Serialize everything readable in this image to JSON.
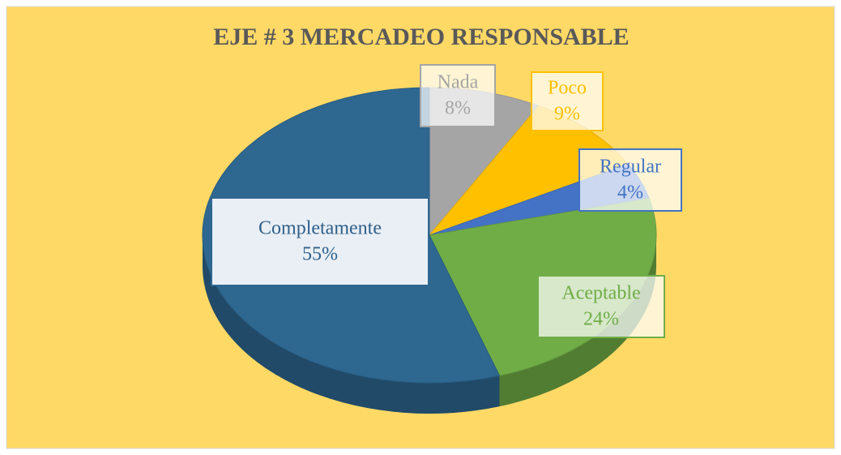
{
  "chart_data": {
    "type": "pie",
    "title": "EJE # 3 MERCADEO RESPONSABLE",
    "categories": [
      "Nada",
      "Poco",
      "Regular",
      "Aceptable",
      "Completamente"
    ],
    "values": [
      8,
      9,
      4,
      24,
      55
    ],
    "value_labels": [
      "8%",
      "9%",
      "4%",
      "24%",
      "55%"
    ],
    "colors": [
      "#a5a5a5",
      "#ffc000",
      "#4472c4",
      "#70ad47",
      "#2e6790"
    ]
  }
}
